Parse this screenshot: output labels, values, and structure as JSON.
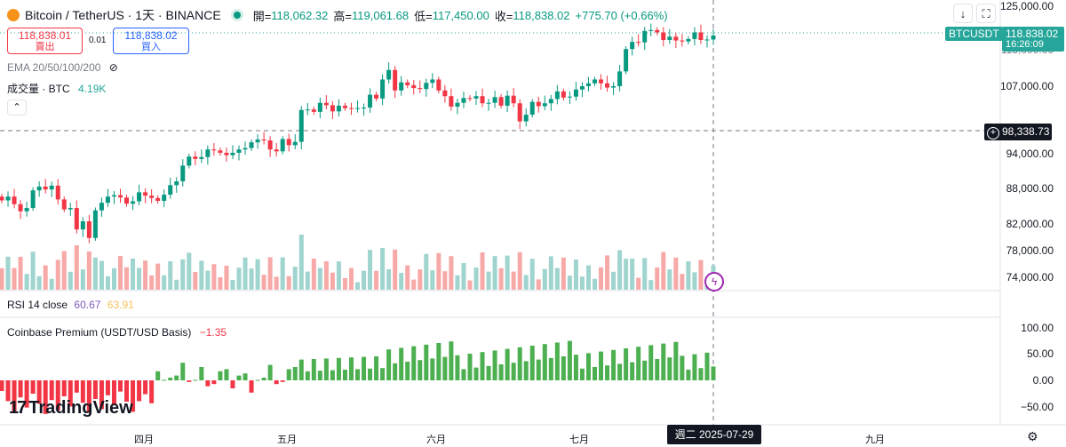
{
  "header": {
    "symbol_title": "Bitcoin / TetherUS · 1天 · BINANCE",
    "ohlc": [
      {
        "label": "開=",
        "value": "118,062.32"
      },
      {
        "label": "高=",
        "value": "119,061.68"
      },
      {
        "label": "低=",
        "value": "117,450.00"
      },
      {
        "label": "收=",
        "value": "118,838.02"
      }
    ],
    "change": "+775.70 (+0.66%)"
  },
  "trade": {
    "sell_price": "118,838.01",
    "sell_label": "賣出",
    "spread": "0.01",
    "buy_price": "118,838.02",
    "buy_label": "買入"
  },
  "indicators": {
    "ema_label": "EMA 20/50/100/200",
    "volume_label": "成交量 · BTC",
    "volume_value": "4.19K",
    "rsi_label": "RSI 14 close",
    "rsi_value_1": "60.67",
    "rsi_value_2": "63.91",
    "premium_label": "Coinbase Premium (USDT/USD Basis)",
    "premium_value": "−1.35"
  },
  "price_axis": {
    "labels": [
      "125,000.00",
      "113,000.00",
      "107,000.00",
      "94,000.00",
      "88,000.00",
      "82,000.00",
      "78,000.00",
      "74,000.00"
    ],
    "last_symbol": "BTCUSDT",
    "last_price": "118,838.02",
    "countdown": "16:26:09",
    "crosshair_price": "98,338.73"
  },
  "premium_axis": {
    "labels": [
      "100.00",
      "50.00",
      "0.00",
      "−50.00"
    ]
  },
  "time_axis": {
    "labels": [
      "四月",
      "五月",
      "六月",
      "七月",
      "九月"
    ],
    "crosshair_date": "週二 2025-07-29"
  },
  "branding": {
    "logo_text": "TradingView"
  },
  "icons": [
    "eye-off-icon",
    "chevron-up-icon",
    "download-icon",
    "fullscreen-icon",
    "settings-icon",
    "lightning-icon",
    "crosshair-plus-icon",
    "tradingview-logo-icon"
  ],
  "colors": {
    "up": "#089981",
    "down": "#f23645",
    "vol_up": "#9fd4cf",
    "vol_down": "#f7a9a7",
    "prem_pos": "#4caf50",
    "prem_neg": "#f23645"
  },
  "chart_data": {
    "type": "candlestick",
    "title": "Bitcoin / TetherUS · 1天 · BINANCE",
    "close": [
      84200,
      85000,
      83400,
      81900,
      82600,
      86300,
      87100,
      86500,
      87300,
      84400,
      82300,
      82600,
      78100,
      79800,
      76300,
      82100,
      83700,
      85000,
      85300,
      84800,
      83500,
      84000,
      85900,
      85200,
      84700,
      84100,
      85400,
      87400,
      88200,
      91500,
      93400,
      92900,
      93300,
      94900,
      94700,
      94200,
      93700,
      94200,
      94900,
      95200,
      96400,
      97000,
      96800,
      94900,
      94500,
      97100,
      95800,
      96500,
      103200,
      103300,
      102800,
      104700,
      104200,
      102900,
      104100,
      103600,
      103500,
      103600,
      103700,
      106400,
      105600,
      109600,
      111600,
      107300,
      109000,
      108400,
      107800,
      107600,
      108900,
      109600,
      107300,
      106100,
      103900,
      104700,
      105700,
      105600,
      106100,
      104600,
      104700,
      105900,
      104100,
      106200,
      104600,
      100800,
      102200,
      104900,
      104000,
      104600,
      105500,
      107100,
      105800,
      106000,
      107500,
      108200,
      108800,
      109600,
      108800,
      107900,
      108200,
      111300,
      116000,
      117500,
      117400,
      119800,
      120000,
      119500,
      117900,
      118600,
      117800,
      117600,
      118100,
      119500,
      117900,
      118000,
      118838
    ]
  }
}
